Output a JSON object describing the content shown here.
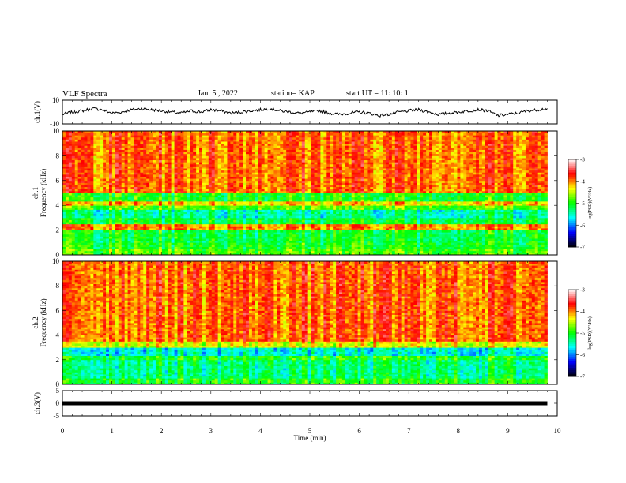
{
  "header": {
    "title": "VLF Spectra",
    "date": "Jan. 5 , 2022",
    "station": "station= KAP",
    "start": "start UT = 11: 10: 1"
  },
  "chart_data": [
    {
      "type": "line",
      "panel": "ch1-waveform",
      "ylabel": "ch.1(V)",
      "ylim": [
        -10,
        10
      ],
      "yticks": [
        -10,
        10
      ],
      "xlim": [
        0,
        10
      ],
      "x": [
        0.0,
        0.2,
        0.4,
        0.6,
        0.8,
        1.0,
        1.2,
        1.4,
        1.6,
        1.8,
        2.0,
        2.2,
        2.4,
        2.6,
        2.8,
        3.0,
        3.2,
        3.4,
        3.6,
        3.8,
        4.0,
        4.2,
        4.4,
        4.6,
        4.8,
        5.0,
        5.2,
        5.4,
        5.6,
        5.8,
        6.0,
        6.2,
        6.4,
        6.6,
        6.8,
        7.0,
        7.2,
        7.4,
        7.6,
        7.8,
        8.0,
        8.2,
        8.4,
        8.6,
        8.8,
        9.0,
        9.2,
        9.4,
        9.6,
        9.8
      ],
      "y": [
        -2,
        0,
        1,
        3,
        2,
        -1,
        0,
        2,
        3,
        2,
        1,
        0,
        -1,
        1,
        0,
        2,
        1,
        -1,
        0,
        1,
        2,
        3,
        1,
        0,
        -1,
        0,
        1,
        -1,
        -2,
        -1,
        0,
        -1,
        -3,
        -2,
        0,
        1,
        2,
        0,
        -2,
        -1,
        0,
        1,
        2,
        1,
        -3,
        -2,
        -1,
        1,
        2,
        3
      ]
    },
    {
      "type": "heatmap",
      "panel": "ch1-spectrogram",
      "ylabel": "ch.1 Frequency (kHz)",
      "ylim": [
        0,
        10
      ],
      "yticks": [
        0,
        2,
        4,
        6,
        8,
        10
      ],
      "xlim": [
        0,
        10
      ],
      "x_max_data": 9.8,
      "z_label": "log(PSD)(V²/Hz)",
      "z_range": [
        -7,
        -3
      ],
      "z_ticks": [
        -3,
        -4,
        -5,
        -6,
        -7
      ],
      "frequency_bands": [
        {
          "f": [
            0.0,
            0.5
          ],
          "level": -4.8
        },
        {
          "f": [
            0.5,
            1.0
          ],
          "level": -5.0
        },
        {
          "f": [
            1.0,
            2.0
          ],
          "level": -5.1
        },
        {
          "f": [
            2.0,
            2.5
          ],
          "level": -4.0
        },
        {
          "f": [
            2.5,
            3.0
          ],
          "level": -5.1
        },
        {
          "f": [
            3.0,
            3.6
          ],
          "level": -5.4
        },
        {
          "f": [
            3.6,
            4.0
          ],
          "level": -4.8
        },
        {
          "f": [
            4.0,
            4.3
          ],
          "level": -4.2
        },
        {
          "f": [
            4.3,
            5.0
          ],
          "level": -5.0
        },
        {
          "f": [
            5.0,
            10.0
          ],
          "level": -3.9
        }
      ]
    },
    {
      "type": "heatmap",
      "panel": "ch2-spectrogram",
      "ylabel": "ch.2 Frequency (kHz)",
      "ylim": [
        0,
        10
      ],
      "yticks": [
        0,
        2,
        4,
        6,
        8,
        10
      ],
      "xlim": [
        0,
        10
      ],
      "x_max_data": 9.8,
      "z_label": "log(PSD)(V²/Hz)",
      "z_range": [
        -7,
        -3
      ],
      "z_ticks": [
        -3,
        -4,
        -5,
        -6,
        -7
      ],
      "frequency_bands": [
        {
          "f": [
            0.0,
            0.5
          ],
          "level": -5.0
        },
        {
          "f": [
            0.5,
            2.0
          ],
          "level": -5.3
        },
        {
          "f": [
            2.0,
            2.3
          ],
          "level": -5.0
        },
        {
          "f": [
            2.3,
            3.0
          ],
          "level": -5.6
        },
        {
          "f": [
            3.0,
            3.5
          ],
          "level": -4.4
        },
        {
          "f": [
            3.5,
            10.0
          ],
          "level": -3.9
        }
      ]
    },
    {
      "type": "line",
      "panel": "ch3-waveform",
      "ylabel": "ch.3(V)",
      "ylim": [
        -5,
        5
      ],
      "yticks": [
        -5,
        0,
        5
      ],
      "xlim": [
        0,
        10
      ],
      "xlabel": "Time (min)",
      "xticks": [
        0,
        1,
        2,
        3,
        4,
        5,
        6,
        7,
        8,
        9,
        10
      ],
      "x": [
        0,
        9.8
      ],
      "y": [
        0,
        0
      ]
    }
  ],
  "colors": {
    "colormap": [
      "#000000",
      "#0000ff",
      "#00ffff",
      "#00ff00",
      "#ffff00",
      "#ff0000",
      "#ffffff"
    ]
  }
}
